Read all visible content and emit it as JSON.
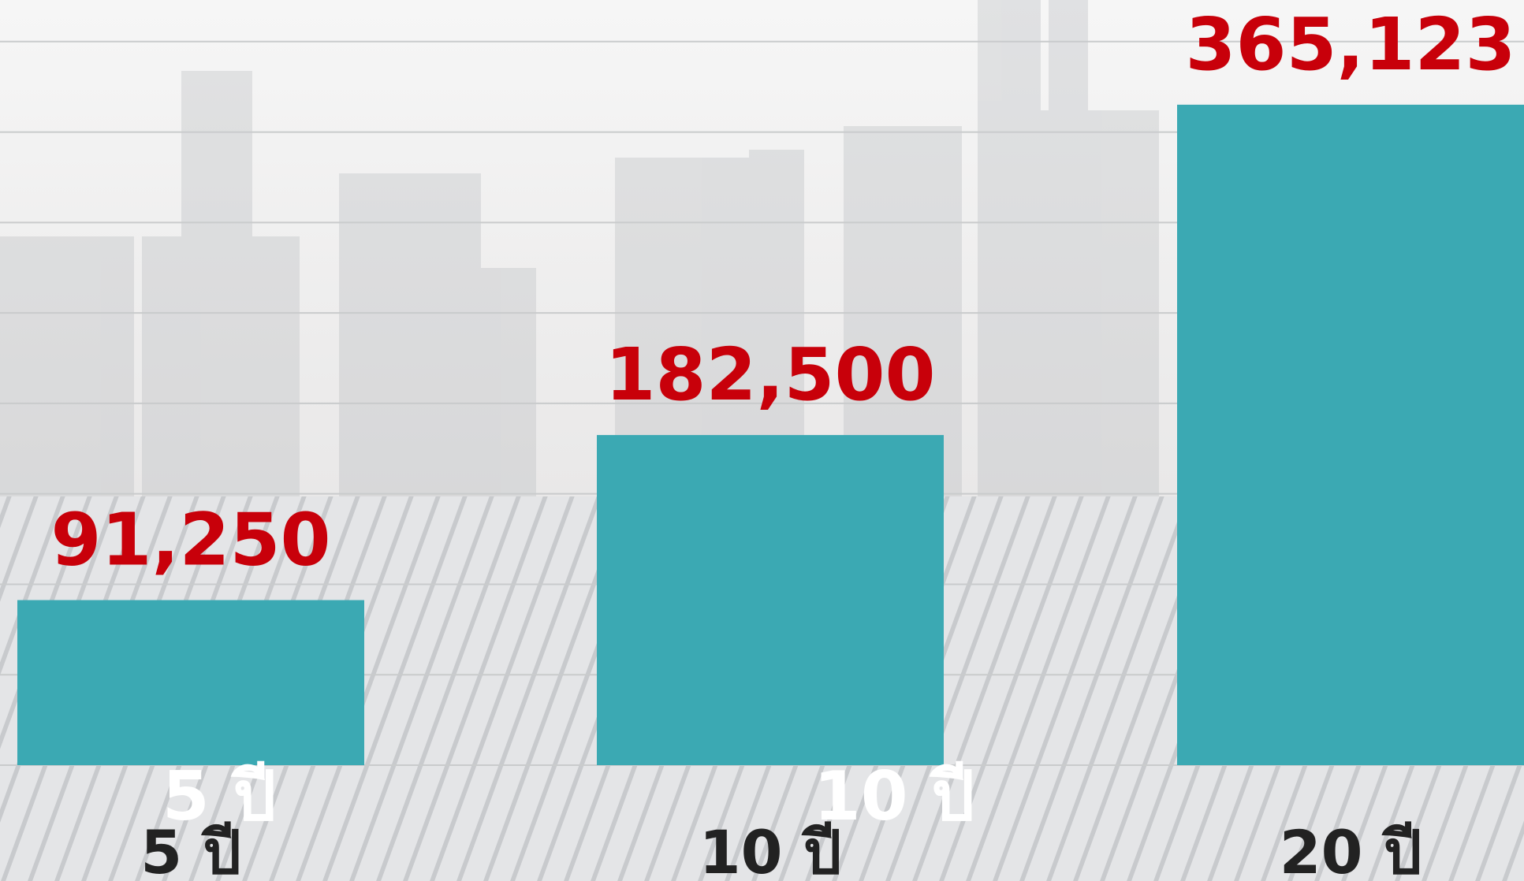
{
  "chart_data": {
    "type": "bar",
    "categories": [
      "5 ปี",
      "10 ปี",
      "20 ปี"
    ],
    "values": [
      91250,
      182500,
      365123
    ],
    "value_labels": [
      "91,250",
      "182,500",
      "365,123"
    ],
    "overlay_labels": [
      "5 ปี",
      "10 ปี"
    ],
    "color": "#3ba9b3",
    "label_color": "#c8000a",
    "ylim": [
      0,
      423000
    ],
    "yticks": [
      0,
      50000,
      100000,
      150000,
      200000,
      250000,
      300000,
      350000,
      400000
    ],
    "grid": true
  }
}
